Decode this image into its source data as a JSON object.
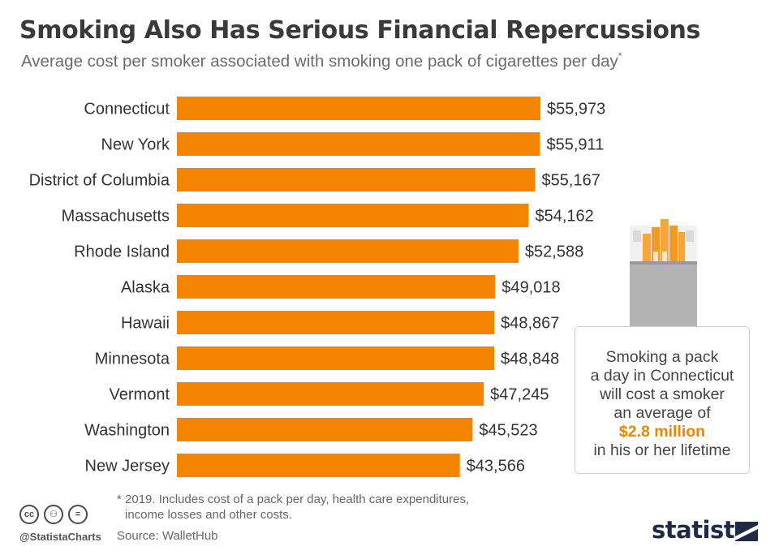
{
  "title": "Smoking Also Has Serious Financial Repercussions",
  "subtitle": "Average cost per smoker associated with smoking one pack of cigarettes per day",
  "subtitle_mark": "*",
  "chart_data": {
    "type": "bar",
    "orientation": "horizontal",
    "categories": [
      "Connecticut",
      "New York",
      "District of Columbia",
      "Massachusetts",
      "Rhode Island",
      "Alaska",
      "Hawaii",
      "Minnesota",
      "Vermont",
      "Washington",
      "New Jersey"
    ],
    "values": [
      55973,
      55911,
      55167,
      54162,
      52588,
      49018,
      48867,
      48848,
      47245,
      45523,
      43566
    ],
    "value_labels": [
      "$55,973",
      "$55,911",
      "$55,167",
      "$54,162",
      "$52,588",
      "$49,018",
      "$48,867",
      "$48,848",
      "$47,245",
      "$45,523",
      "$43,566"
    ],
    "bar_color": "#f58400",
    "xlim": [
      0,
      55973
    ],
    "grid": false
  },
  "callout": {
    "line1": "Smoking a pack",
    "line2": "a day in Connecticut",
    "line3": "will cost a smoker",
    "line4": "an average of",
    "highlight": "$2.8 million",
    "line5": "in his or her lifetime",
    "highlight_color": "#f08400"
  },
  "footnote": {
    "line1": "* 2019. Includes cost of a pack per day, health care expenditures,",
    "line2": "income losses and other costs."
  },
  "source": "Source: WalletHub",
  "handle": "@StatistaCharts",
  "cc_icons": [
    {
      "name": "creative-commons-icon",
      "glyph": "cc"
    },
    {
      "name": "attribution-icon",
      "glyph": "⚇"
    },
    {
      "name": "no-derivatives-icon",
      "glyph": "="
    }
  ],
  "logo": "statista"
}
